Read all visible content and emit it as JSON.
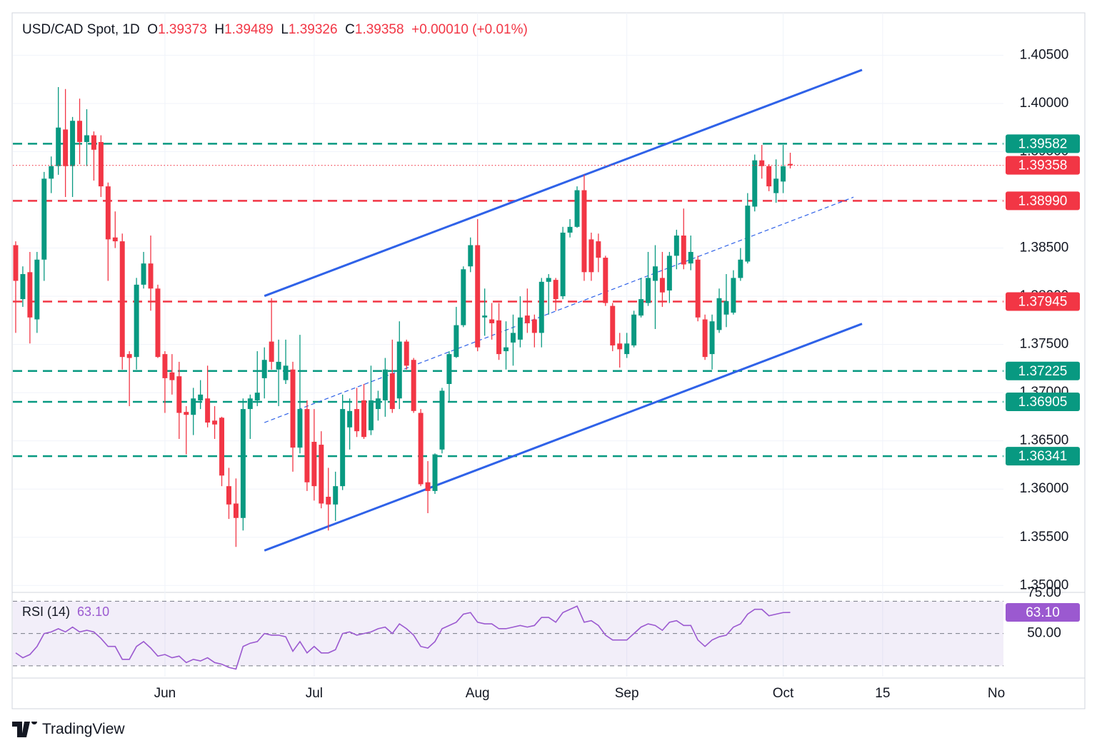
{
  "chart_data": {
    "type": "candlestick",
    "symbol": "USD/CAD Spot, 1D",
    "ohlc_keys": [
      "O",
      "H",
      "L",
      "C"
    ],
    "change": "+0.00010 (+0.01%)",
    "up_color": "#089981",
    "down_color": "#f23645",
    "grid": true,
    "xlim": [
      -0.4,
      139
    ],
    "xticks": [
      {
        "value": 21,
        "label": "Jun"
      },
      {
        "value": 42,
        "label": "Jul"
      },
      {
        "value": 65,
        "label": "Aug"
      },
      {
        "value": 86,
        "label": "Sep"
      },
      {
        "value": 108,
        "label": "Oct"
      },
      {
        "value": 122,
        "label": "15"
      },
      {
        "value": 139,
        "label": "No"
      }
    ],
    "ylim": [
      1.34928,
      1.4094
    ],
    "yticks": [
      {
        "value": 1.35,
        "label": "1.35000"
      },
      {
        "value": 1.355,
        "label": "1.35500"
      },
      {
        "value": 1.36,
        "label": "1.36000"
      },
      {
        "value": 1.365,
        "label": "1.36500"
      },
      {
        "value": 1.37,
        "label": "1.37000"
      },
      {
        "value": 1.375,
        "label": "1.37500"
      },
      {
        "value": 1.38,
        "label": "1.38000"
      },
      {
        "value": 1.385,
        "label": "1.38500"
      },
      {
        "value": 1.39,
        "label": "1.39000"
      },
      {
        "value": 1.395,
        "label": "1.39500"
      },
      {
        "value": 1.4,
        "label": "1.40000"
      },
      {
        "value": 1.405,
        "label": "1.40500"
      }
    ],
    "open": [
      1.3853,
      1.3797,
      1.3825,
      1.3776,
      1.3838,
      1.3922,
      1.3935,
      1.3973,
      1.3935,
      1.3982,
      1.396,
      1.3967,
      1.396,
      1.3914,
      1.3861,
      1.3857,
      1.374,
      1.3737,
      1.3812,
      1.3834,
      1.3808,
      1.374,
      1.3721,
      1.3717,
      1.368,
      1.3677,
      1.3692,
      1.3694,
      1.3671,
      1.3674,
      1.3603,
      1.3585,
      1.357,
      1.3683,
      1.3692,
      1.3715,
      1.3753,
      1.3724,
      1.3713,
      1.3724,
      1.3643,
      1.3683,
      1.3649,
      1.3646,
      1.3592,
      1.3584,
      1.3603,
      1.3664,
      1.3683,
      1.3692,
      1.3661,
      1.3683,
      1.3692,
      1.372,
      1.3694,
      1.3753,
      1.3734,
      1.3679,
      1.3607,
      1.3598,
      1.3641,
      1.3709,
      1.3737,
      1.377,
      1.3831,
      1.3853,
      1.3778,
      1.3776,
      1.3775,
      1.3743,
      1.3752,
      1.3755,
      1.378,
      1.3776,
      1.3762,
      1.3815,
      1.3817,
      1.38,
      1.3866,
      1.3872,
      1.391,
      1.3859,
      1.3857,
      1.384,
      1.379,
      1.3751,
      1.374,
      1.3749,
      1.378,
      1.3793,
      1.3816,
      1.3819,
      1.3806,
      1.3842,
      1.3863,
      1.3834,
      1.3838,
      1.3776,
      1.374,
      1.3765,
      1.3781,
      1.3783,
      1.3819,
      1.3836,
      1.3893,
      1.3941,
      1.3935,
      1.3907,
      1.3919,
      1.39373
    ],
    "high": [
      1.3857,
      1.3831,
      1.3846,
      1.3846,
      1.3929,
      1.3945,
      1.4017,
      1.4015,
      1.3986,
      1.4005,
      1.3994,
      1.3971,
      1.3967,
      1.3918,
      1.3888,
      1.3865,
      1.3743,
      1.3819,
      1.3846,
      1.3863,
      1.3812,
      1.3743,
      1.374,
      1.3732,
      1.3686,
      1.3705,
      1.3713,
      1.3728,
      1.3686,
      1.3675,
      1.3622,
      1.3611,
      1.3694,
      1.3698,
      1.3743,
      1.3747,
      1.3798,
      1.3755,
      1.3755,
      1.3732,
      1.376,
      1.3692,
      1.3683,
      1.366,
      1.3622,
      1.3618,
      1.3698,
      1.3694,
      1.3705,
      1.3709,
      1.3728,
      1.3702,
      1.3736,
      1.3755,
      1.3774,
      1.3755,
      1.3736,
      1.3683,
      1.3629,
      1.3637,
      1.3705,
      1.3743,
      1.3789,
      1.3831,
      1.3861,
      1.388,
      1.3808,
      1.3793,
      1.3793,
      1.3774,
      1.3781,
      1.38,
      1.3808,
      1.3781,
      1.3819,
      1.3823,
      1.3819,
      1.3872,
      1.388,
      1.3914,
      1.3926,
      1.3866,
      1.3865,
      1.3842,
      1.3793,
      1.3762,
      1.3762,
      1.3785,
      1.3819,
      1.3846,
      1.3853,
      1.3846,
      1.3846,
      1.3869,
      1.3891,
      1.3863,
      1.3842,
      1.3781,
      1.3781,
      1.3808,
      1.3823,
      1.3827,
      1.385,
      1.3907,
      1.3947,
      1.3957,
      1.3937,
      1.3942,
      1.3957,
      1.39489
    ],
    "low": [
      1.3762,
      1.3789,
      1.3751,
      1.3762,
      1.3816,
      1.3907,
      1.3926,
      1.3903,
      1.3903,
      1.3937,
      1.3935,
      1.392,
      1.3903,
      1.3816,
      1.385,
      1.3724,
      1.3686,
      1.3724,
      1.3808,
      1.3785,
      1.3736,
      1.3679,
      1.3698,
      1.3652,
      1.3636,
      1.3656,
      1.3683,
      1.3664,
      1.3652,
      1.3603,
      1.3569,
      1.354,
      1.3557,
      1.3652,
      1.3686,
      1.3694,
      1.3724,
      1.3686,
      1.3709,
      1.3618,
      1.3637,
      1.3598,
      1.3588,
      1.358,
      1.3557,
      1.3567,
      1.3599,
      1.3641,
      1.3654,
      1.3652,
      1.3656,
      1.3671,
      1.3675,
      1.3679,
      1.3683,
      1.3724,
      1.3679,
      1.3603,
      1.3575,
      1.3595,
      1.3637,
      1.369,
      1.3736,
      1.3768,
      1.3825,
      1.3743,
      1.3759,
      1.3755,
      1.3734,
      1.3724,
      1.3728,
      1.3747,
      1.3762,
      1.3747,
      1.3747,
      1.3781,
      1.3785,
      1.3797,
      1.3861,
      1.3871,
      1.3816,
      1.3816,
      1.3825,
      1.379,
      1.3743,
      1.3726,
      1.3736,
      1.3747,
      1.3778,
      1.379,
      1.3766,
      1.3789,
      1.3793,
      1.3828,
      1.3828,
      1.3827,
      1.3774,
      1.3734,
      1.3724,
      1.3762,
      1.3768,
      1.3781,
      1.3816,
      1.3834,
      1.3888,
      1.3922,
      1.3909,
      1.3897,
      1.3907,
      1.39326
    ],
    "close": [
      1.3816,
      1.3823,
      1.3778,
      1.3838,
      1.3922,
      1.3935,
      1.3975,
      1.3935,
      1.3982,
      1.396,
      1.3967,
      1.3952,
      1.3914,
      1.3859,
      1.3857,
      1.3737,
      1.3736,
      1.3812,
      1.3834,
      1.3808,
      1.3737,
      1.3715,
      1.3713,
      1.3679,
      1.3677,
      1.3694,
      1.3698,
      1.3669,
      1.3667,
      1.3614,
      1.3584,
      1.357,
      1.3683,
      1.3694,
      1.37,
      1.3734,
      1.3732,
      1.3732,
      1.3728,
      1.3643,
      1.3683,
      1.3607,
      1.3603,
      1.3585,
      1.3584,
      1.3603,
      1.3683,
      1.3681,
      1.366,
      1.3654,
      1.3692,
      1.3694,
      1.3724,
      1.3683,
      1.3753,
      1.3728,
      1.3681,
      1.3605,
      1.3598,
      1.3636,
      1.3702,
      1.374,
      1.377,
      1.3828,
      1.3853,
      1.3747,
      1.378,
      1.3772,
      1.374,
      1.3747,
      1.3762,
      1.3778,
      1.3772,
      1.3762,
      1.3815,
      1.3819,
      1.3797,
      1.3866,
      1.3872,
      1.391,
      1.3825,
      1.3825,
      1.384,
      1.3793,
      1.3749,
      1.3745,
      1.3751,
      1.3781,
      1.3797,
      1.3819,
      1.3831,
      1.3804,
      1.3842,
      1.3863,
      1.3833,
      1.3846,
      1.3778,
      1.3737,
      1.3774,
      1.3798,
      1.3795,
      1.3819,
      1.3838,
      1.3894,
      1.3941,
      1.3935,
      1.3914,
      1.3922,
      1.39348,
      1.39358
    ],
    "levels": [
      {
        "value": 1.39582,
        "color": "#089981"
      },
      {
        "value": 1.3899,
        "label": "1.38990",
        "color": "#f23645"
      },
      {
        "value": 1.37945,
        "color": "#f23645"
      },
      {
        "value": 1.37225,
        "color": "#089981"
      },
      {
        "value": 1.36905,
        "color": "#089981"
      },
      {
        "value": 1.36341,
        "color": "#089981"
      }
    ],
    "trendline_color": "#2f62e8",
    "trendlines": [
      {
        "x": [
          35,
          119.1
        ],
        "y": [
          1.38003,
          1.40348
        ],
        "dashed": false
      },
      {
        "x": [
          35,
          119.1
        ],
        "y": [
          1.35362,
          1.37714
        ],
        "dashed": false
      },
      {
        "x": [
          35,
          117.9
        ],
        "y": [
          1.3669,
          1.39028
        ],
        "dashed": true
      }
    ],
    "indicator": {
      "name": "RSI (14)",
      "color": "#9b59d0",
      "value_label": "63.10",
      "ylim": [
        23.3,
        75.5
      ],
      "yticks": [
        {
          "value": 50,
          "label": "50.00"
        },
        {
          "value": 75,
          "label": "75.00"
        }
      ],
      "bands": [
        30,
        70
      ],
      "values": [
        38,
        35,
        37,
        42,
        50,
        51,
        53,
        51,
        54,
        51,
        52,
        51,
        47,
        42,
        42,
        34,
        34,
        42,
        45,
        41,
        36,
        37,
        35,
        36,
        32,
        34,
        33,
        35,
        32,
        31,
        29,
        28,
        42,
        44,
        45,
        50,
        49,
        49,
        48,
        39,
        45,
        38,
        42,
        38,
        38,
        40,
        50,
        51,
        49,
        50,
        51,
        53,
        54,
        50,
        56,
        53,
        49,
        42,
        41,
        45,
        53,
        55,
        57,
        62,
        63,
        57,
        56,
        56,
        53,
        53,
        54,
        55,
        54,
        55,
        60,
        60,
        57,
        63,
        65,
        67,
        57,
        58,
        55,
        49,
        46,
        46,
        46,
        50,
        54,
        56,
        55,
        52,
        57,
        58,
        55,
        55,
        46,
        42,
        46,
        48,
        49,
        54,
        56,
        62,
        65,
        65,
        61,
        62,
        63,
        63.1
      ]
    }
  },
  "footer": {
    "brand": "TradingView"
  }
}
